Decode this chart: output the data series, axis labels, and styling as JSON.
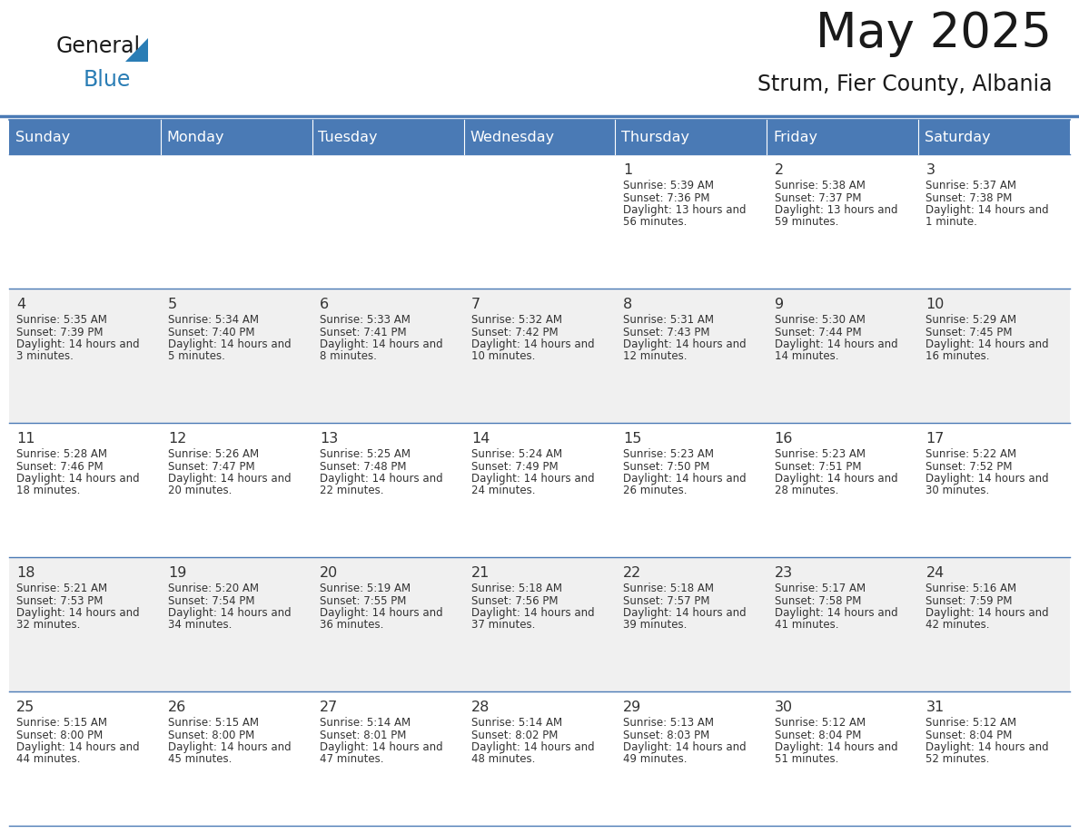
{
  "title": "May 2025",
  "subtitle": "Strum, Fier County, Albania",
  "header_bg_color": "#4a7ab5",
  "header_text_color": "#ffffff",
  "day_names": [
    "Sunday",
    "Monday",
    "Tuesday",
    "Wednesday",
    "Thursday",
    "Friday",
    "Saturday"
  ],
  "background_color": "#ffffff",
  "cell_bg_row0": "#ffffff",
  "cell_bg_row1": "#f0f0f0",
  "cell_bg_row2": "#ffffff",
  "cell_bg_row3": "#f0f0f0",
  "cell_bg_row4": "#ffffff",
  "cell_border_color": "#4a7ab5",
  "text_color": "#333333",
  "logo_general_color": "#1a1a1a",
  "logo_blue_color": "#2a7db5",
  "logo_triangle_color": "#2a7db5",
  "days": [
    {
      "day": 1,
      "col": 4,
      "row": 0,
      "sunrise": "5:39 AM",
      "sunset": "7:36 PM",
      "daylight": "13 hours and 56 minutes"
    },
    {
      "day": 2,
      "col": 5,
      "row": 0,
      "sunrise": "5:38 AM",
      "sunset": "7:37 PM",
      "daylight": "13 hours and 59 minutes"
    },
    {
      "day": 3,
      "col": 6,
      "row": 0,
      "sunrise": "5:37 AM",
      "sunset": "7:38 PM",
      "daylight": "14 hours and 1 minute"
    },
    {
      "day": 4,
      "col": 0,
      "row": 1,
      "sunrise": "5:35 AM",
      "sunset": "7:39 PM",
      "daylight": "14 hours and 3 minutes"
    },
    {
      "day": 5,
      "col": 1,
      "row": 1,
      "sunrise": "5:34 AM",
      "sunset": "7:40 PM",
      "daylight": "14 hours and 5 minutes"
    },
    {
      "day": 6,
      "col": 2,
      "row": 1,
      "sunrise": "5:33 AM",
      "sunset": "7:41 PM",
      "daylight": "14 hours and 8 minutes"
    },
    {
      "day": 7,
      "col": 3,
      "row": 1,
      "sunrise": "5:32 AM",
      "sunset": "7:42 PM",
      "daylight": "14 hours and 10 minutes"
    },
    {
      "day": 8,
      "col": 4,
      "row": 1,
      "sunrise": "5:31 AM",
      "sunset": "7:43 PM",
      "daylight": "14 hours and 12 minutes"
    },
    {
      "day": 9,
      "col": 5,
      "row": 1,
      "sunrise": "5:30 AM",
      "sunset": "7:44 PM",
      "daylight": "14 hours and 14 minutes"
    },
    {
      "day": 10,
      "col": 6,
      "row": 1,
      "sunrise": "5:29 AM",
      "sunset": "7:45 PM",
      "daylight": "14 hours and 16 minutes"
    },
    {
      "day": 11,
      "col": 0,
      "row": 2,
      "sunrise": "5:28 AM",
      "sunset": "7:46 PM",
      "daylight": "14 hours and 18 minutes"
    },
    {
      "day": 12,
      "col": 1,
      "row": 2,
      "sunrise": "5:26 AM",
      "sunset": "7:47 PM",
      "daylight": "14 hours and 20 minutes"
    },
    {
      "day": 13,
      "col": 2,
      "row": 2,
      "sunrise": "5:25 AM",
      "sunset": "7:48 PM",
      "daylight": "14 hours and 22 minutes"
    },
    {
      "day": 14,
      "col": 3,
      "row": 2,
      "sunrise": "5:24 AM",
      "sunset": "7:49 PM",
      "daylight": "14 hours and 24 minutes"
    },
    {
      "day": 15,
      "col": 4,
      "row": 2,
      "sunrise": "5:23 AM",
      "sunset": "7:50 PM",
      "daylight": "14 hours and 26 minutes"
    },
    {
      "day": 16,
      "col": 5,
      "row": 2,
      "sunrise": "5:23 AM",
      "sunset": "7:51 PM",
      "daylight": "14 hours and 28 minutes"
    },
    {
      "day": 17,
      "col": 6,
      "row": 2,
      "sunrise": "5:22 AM",
      "sunset": "7:52 PM",
      "daylight": "14 hours and 30 minutes"
    },
    {
      "day": 18,
      "col": 0,
      "row": 3,
      "sunrise": "5:21 AM",
      "sunset": "7:53 PM",
      "daylight": "14 hours and 32 minutes"
    },
    {
      "day": 19,
      "col": 1,
      "row": 3,
      "sunrise": "5:20 AM",
      "sunset": "7:54 PM",
      "daylight": "14 hours and 34 minutes"
    },
    {
      "day": 20,
      "col": 2,
      "row": 3,
      "sunrise": "5:19 AM",
      "sunset": "7:55 PM",
      "daylight": "14 hours and 36 minutes"
    },
    {
      "day": 21,
      "col": 3,
      "row": 3,
      "sunrise": "5:18 AM",
      "sunset": "7:56 PM",
      "daylight": "14 hours and 37 minutes"
    },
    {
      "day": 22,
      "col": 4,
      "row": 3,
      "sunrise": "5:18 AM",
      "sunset": "7:57 PM",
      "daylight": "14 hours and 39 minutes"
    },
    {
      "day": 23,
      "col": 5,
      "row": 3,
      "sunrise": "5:17 AM",
      "sunset": "7:58 PM",
      "daylight": "14 hours and 41 minutes"
    },
    {
      "day": 24,
      "col": 6,
      "row": 3,
      "sunrise": "5:16 AM",
      "sunset": "7:59 PM",
      "daylight": "14 hours and 42 minutes"
    },
    {
      "day": 25,
      "col": 0,
      "row": 4,
      "sunrise": "5:15 AM",
      "sunset": "8:00 PM",
      "daylight": "14 hours and 44 minutes"
    },
    {
      "day": 26,
      "col": 1,
      "row": 4,
      "sunrise": "5:15 AM",
      "sunset": "8:00 PM",
      "daylight": "14 hours and 45 minutes"
    },
    {
      "day": 27,
      "col": 2,
      "row": 4,
      "sunrise": "5:14 AM",
      "sunset": "8:01 PM",
      "daylight": "14 hours and 47 minutes"
    },
    {
      "day": 28,
      "col": 3,
      "row": 4,
      "sunrise": "5:14 AM",
      "sunset": "8:02 PM",
      "daylight": "14 hours and 48 minutes"
    },
    {
      "day": 29,
      "col": 4,
      "row": 4,
      "sunrise": "5:13 AM",
      "sunset": "8:03 PM",
      "daylight": "14 hours and 49 minutes"
    },
    {
      "day": 30,
      "col": 5,
      "row": 4,
      "sunrise": "5:12 AM",
      "sunset": "8:04 PM",
      "daylight": "14 hours and 51 minutes"
    },
    {
      "day": 31,
      "col": 6,
      "row": 4,
      "sunrise": "5:12 AM",
      "sunset": "8:04 PM",
      "daylight": "14 hours and 52 minutes"
    }
  ]
}
